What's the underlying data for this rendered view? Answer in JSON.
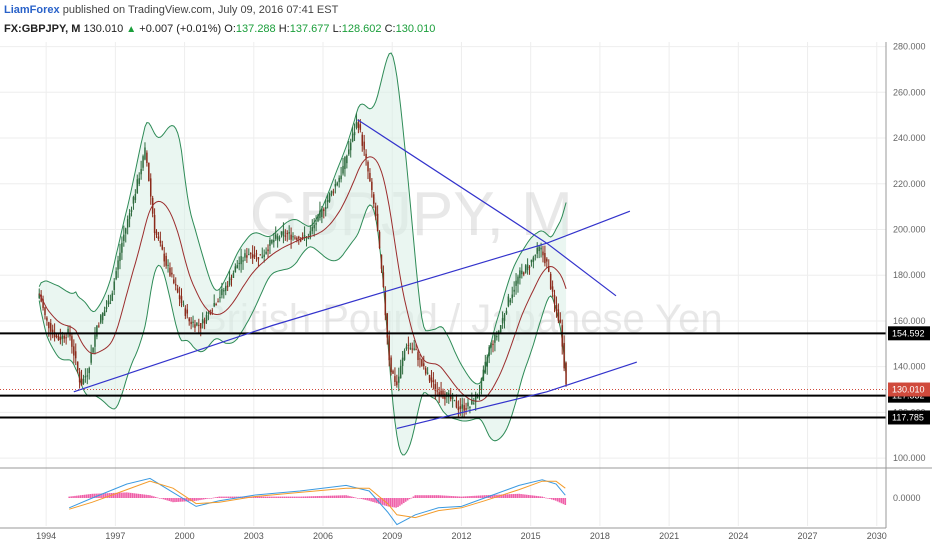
{
  "header": {
    "author": "LiamForex",
    "published": "published on TradingView.com, July 09, 2016 07:41 EST",
    "symbol": "FX:GBPJPY, M",
    "last": "130.010",
    "change": "+0.007 (+0.01%)",
    "o_label": "O:",
    "o_value": "137.288",
    "h_label": "H:",
    "h_value": "137.677",
    "l_label": "L:",
    "l_value": "128.602",
    "c_label": "C:",
    "c_value": "130.010"
  },
  "watermark": {
    "symbol": "GBPJPY, M",
    "name": "British Pound / Japanese Yen"
  },
  "colors": {
    "candle_up": "#2e6b3e",
    "candle_down": "#8b2a1a",
    "bollinger": "#2e8b57",
    "bollinger_fill": "#d8eee6",
    "ma": "#9b2d2d",
    "trendline": "#3333cc",
    "level": "#000000",
    "price_tag": "#d04a3c",
    "macd_line": "#3b9ae1",
    "signal_line": "#f39c2b",
    "histogram": "#ef5fa8"
  },
  "chart_data": {
    "type": "candlestick",
    "title": "GBPJPY, M",
    "subtitle": "British Pound / Japanese Yen",
    "x_ticks": [
      "1994",
      "1997",
      "2000",
      "2003",
      "2006",
      "2009",
      "2012",
      "2015",
      "2018",
      "2021",
      "2024",
      "2027",
      "2030"
    ],
    "x_range": [
      1992.0,
      2030.4
    ],
    "y_ticks": [
      "280.000",
      "260.000",
      "240.000",
      "220.000",
      "200.000",
      "180.000",
      "160.000",
      "140.000",
      "120.000",
      "100.000"
    ],
    "y_range": [
      97,
      282
    ],
    "horizontal_levels": [
      154.592,
      127.332,
      117.785
    ],
    "level_labels": [
      "154.592",
      "127.332",
      "117.785"
    ],
    "current_price": 130.01,
    "current_price_label": "130.010",
    "close_path": [
      [
        1993.7,
        172
      ],
      [
        1994.0,
        160
      ],
      [
        1994.5,
        152
      ],
      [
        1995.0,
        155
      ],
      [
        1995.5,
        132
      ],
      [
        1995.8,
        138
      ],
      [
        1996.2,
        158
      ],
      [
        1996.8,
        170
      ],
      [
        1997.3,
        195
      ],
      [
        1997.9,
        218
      ],
      [
        1998.3,
        235
      ],
      [
        1998.7,
        200
      ],
      [
        1999.2,
        185
      ],
      [
        1999.7,
        172
      ],
      [
        2000.2,
        160
      ],
      [
        2000.7,
        158
      ],
      [
        2001.3,
        168
      ],
      [
        2001.8,
        175
      ],
      [
        2002.3,
        185
      ],
      [
        2002.8,
        190
      ],
      [
        2003.3,
        188
      ],
      [
        2003.8,
        195
      ],
      [
        2004.3,
        198
      ],
      [
        2004.8,
        197
      ],
      [
        2005.3,
        196
      ],
      [
        2005.8,
        205
      ],
      [
        2006.3,
        215
      ],
      [
        2006.8,
        225
      ],
      [
        2007.2,
        238
      ],
      [
        2007.5,
        248
      ],
      [
        2007.9,
        228
      ],
      [
        2008.3,
        205
      ],
      [
        2008.6,
        175
      ],
      [
        2008.9,
        140
      ],
      [
        2009.2,
        132
      ],
      [
        2009.6,
        150
      ],
      [
        2010.0,
        147
      ],
      [
        2010.4,
        138
      ],
      [
        2010.9,
        130
      ],
      [
        2011.4,
        127
      ],
      [
        2011.9,
        122
      ],
      [
        2012.4,
        123
      ],
      [
        2012.8,
        130
      ],
      [
        2013.2,
        148
      ],
      [
        2013.6,
        155
      ],
      [
        2014.0,
        168
      ],
      [
        2014.5,
        180
      ],
      [
        2014.9,
        184
      ],
      [
        2015.4,
        192
      ],
      [
        2015.7,
        185
      ],
      [
        2016.0,
        168
      ],
      [
        2016.3,
        158
      ],
      [
        2016.55,
        130
      ]
    ],
    "macd": {
      "y_ticks": [
        "0.0000"
      ],
      "y_range": [
        -1,
        1
      ],
      "macd_path": [
        [
          1995.0,
          -0.35
        ],
        [
          1996.0,
          0.0
        ],
        [
          1997.5,
          0.5
        ],
        [
          1998.5,
          0.7
        ],
        [
          1999.5,
          0.2
        ],
        [
          2000.5,
          -0.3
        ],
        [
          2001.5,
          -0.1
        ],
        [
          2003.0,
          0.1
        ],
        [
          2005.0,
          0.25
        ],
        [
          2007.0,
          0.45
        ],
        [
          2008.0,
          0.25
        ],
        [
          2008.8,
          -0.5
        ],
        [
          2009.2,
          -0.95
        ],
        [
          2010.0,
          -0.6
        ],
        [
          2011.0,
          -0.35
        ],
        [
          2012.0,
          -0.3
        ],
        [
          2013.0,
          0.0
        ],
        [
          2014.5,
          0.45
        ],
        [
          2015.5,
          0.65
        ],
        [
          2016.1,
          0.5
        ],
        [
          2016.5,
          0.1
        ]
      ],
      "signal_path": [
        [
          1995.0,
          -0.4
        ],
        [
          1996.0,
          -0.15
        ],
        [
          1997.5,
          0.3
        ],
        [
          1998.5,
          0.6
        ],
        [
          1999.5,
          0.35
        ],
        [
          2000.5,
          -0.2
        ],
        [
          2001.5,
          -0.15
        ],
        [
          2003.0,
          0.05
        ],
        [
          2005.0,
          0.2
        ],
        [
          2007.0,
          0.35
        ],
        [
          2008.0,
          0.35
        ],
        [
          2008.8,
          -0.2
        ],
        [
          2009.2,
          -0.6
        ],
        [
          2010.0,
          -0.7
        ],
        [
          2011.0,
          -0.45
        ],
        [
          2012.0,
          -0.35
        ],
        [
          2013.0,
          -0.1
        ],
        [
          2014.5,
          0.3
        ],
        [
          2015.5,
          0.6
        ],
        [
          2016.1,
          0.6
        ],
        [
          2016.5,
          0.35
        ]
      ]
    }
  }
}
